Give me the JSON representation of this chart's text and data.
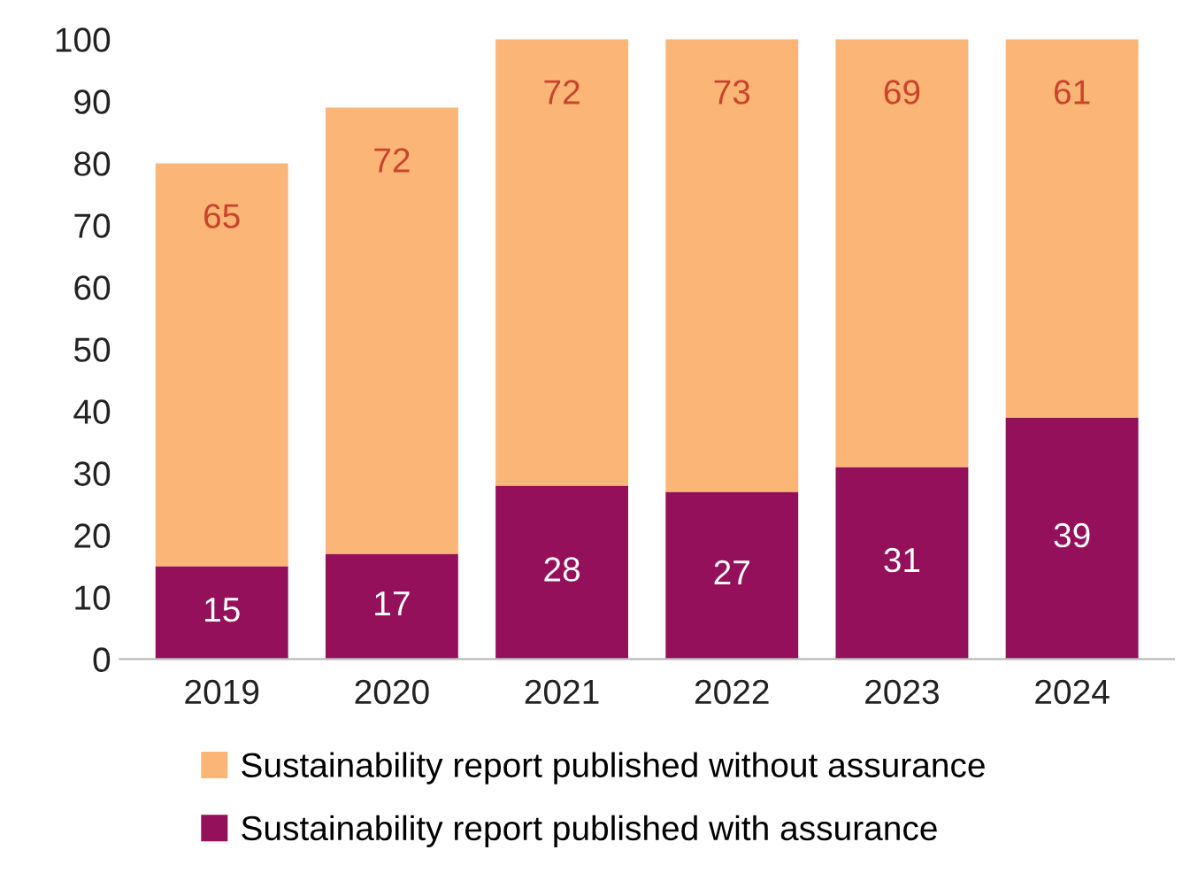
{
  "chart_data": {
    "type": "bar",
    "stacked": true,
    "categories": [
      "2019",
      "2020",
      "2021",
      "2022",
      "2023",
      "2024"
    ],
    "series": [
      {
        "name": "Sustainability report published with assurance",
        "color": "#95105a",
        "values": [
          15,
          17,
          28,
          27,
          31,
          39
        ]
      },
      {
        "name": "Sustainability report published without assurance",
        "color": "#fbb577",
        "values": [
          65,
          72,
          72,
          73,
          69,
          61
        ]
      }
    ],
    "ylim": [
      0,
      100
    ],
    "yticks": [
      0,
      10,
      20,
      30,
      40,
      50,
      60,
      70,
      80,
      90,
      100
    ],
    "data_labels": true,
    "grid": false,
    "legend": "bottom"
  }
}
